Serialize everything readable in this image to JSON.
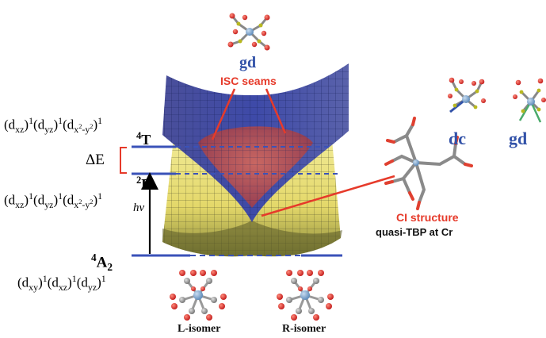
{
  "labels": {
    "gd_top": "gd",
    "isc_seams": "ISC seams",
    "dc": "dc",
    "gd_right": "gd",
    "ci_structure": "CI structure",
    "quasi_tbp": "quasi-TBP at Cr",
    "delta_e": "ΔE",
    "hv": "hν",
    "l_isomer": "L-isomer",
    "r_isomer": "R-isomer"
  },
  "states": {
    "quartet_t": {
      "spin": "4",
      "symbol": "T"
    },
    "doublet_e": {
      "spin": "2",
      "symbol": "E"
    },
    "quartet_a2": {
      "spin": "4",
      "symbol": "A",
      "sub": "2"
    }
  },
  "configs": {
    "c1": [
      "(d",
      "xz",
      ")",
      "1",
      "(d",
      "yz",
      ")",
      "1",
      "(d",
      "x",
      "2",
      "-y",
      "2",
      ")",
      "1"
    ],
    "c2": [
      "(d",
      "xz",
      ")",
      "1",
      "(d",
      "yz",
      ")",
      "1",
      "(d",
      "x",
      "2",
      "-y",
      "2",
      ")",
      "1"
    ],
    "c3": [
      "(d",
      "xy",
      ")",
      "1",
      "(d",
      "xz",
      ")",
      "1",
      "(d",
      "yz",
      ")",
      "1"
    ]
  },
  "colors": {
    "blue_surface": "#3a4a9a",
    "yellow_surface": "#e6dd6a",
    "red_seam": "#b8483e",
    "level_line": "#3a52b8",
    "accent_red": "#e63a2a",
    "label_blue": "#3252a8"
  }
}
